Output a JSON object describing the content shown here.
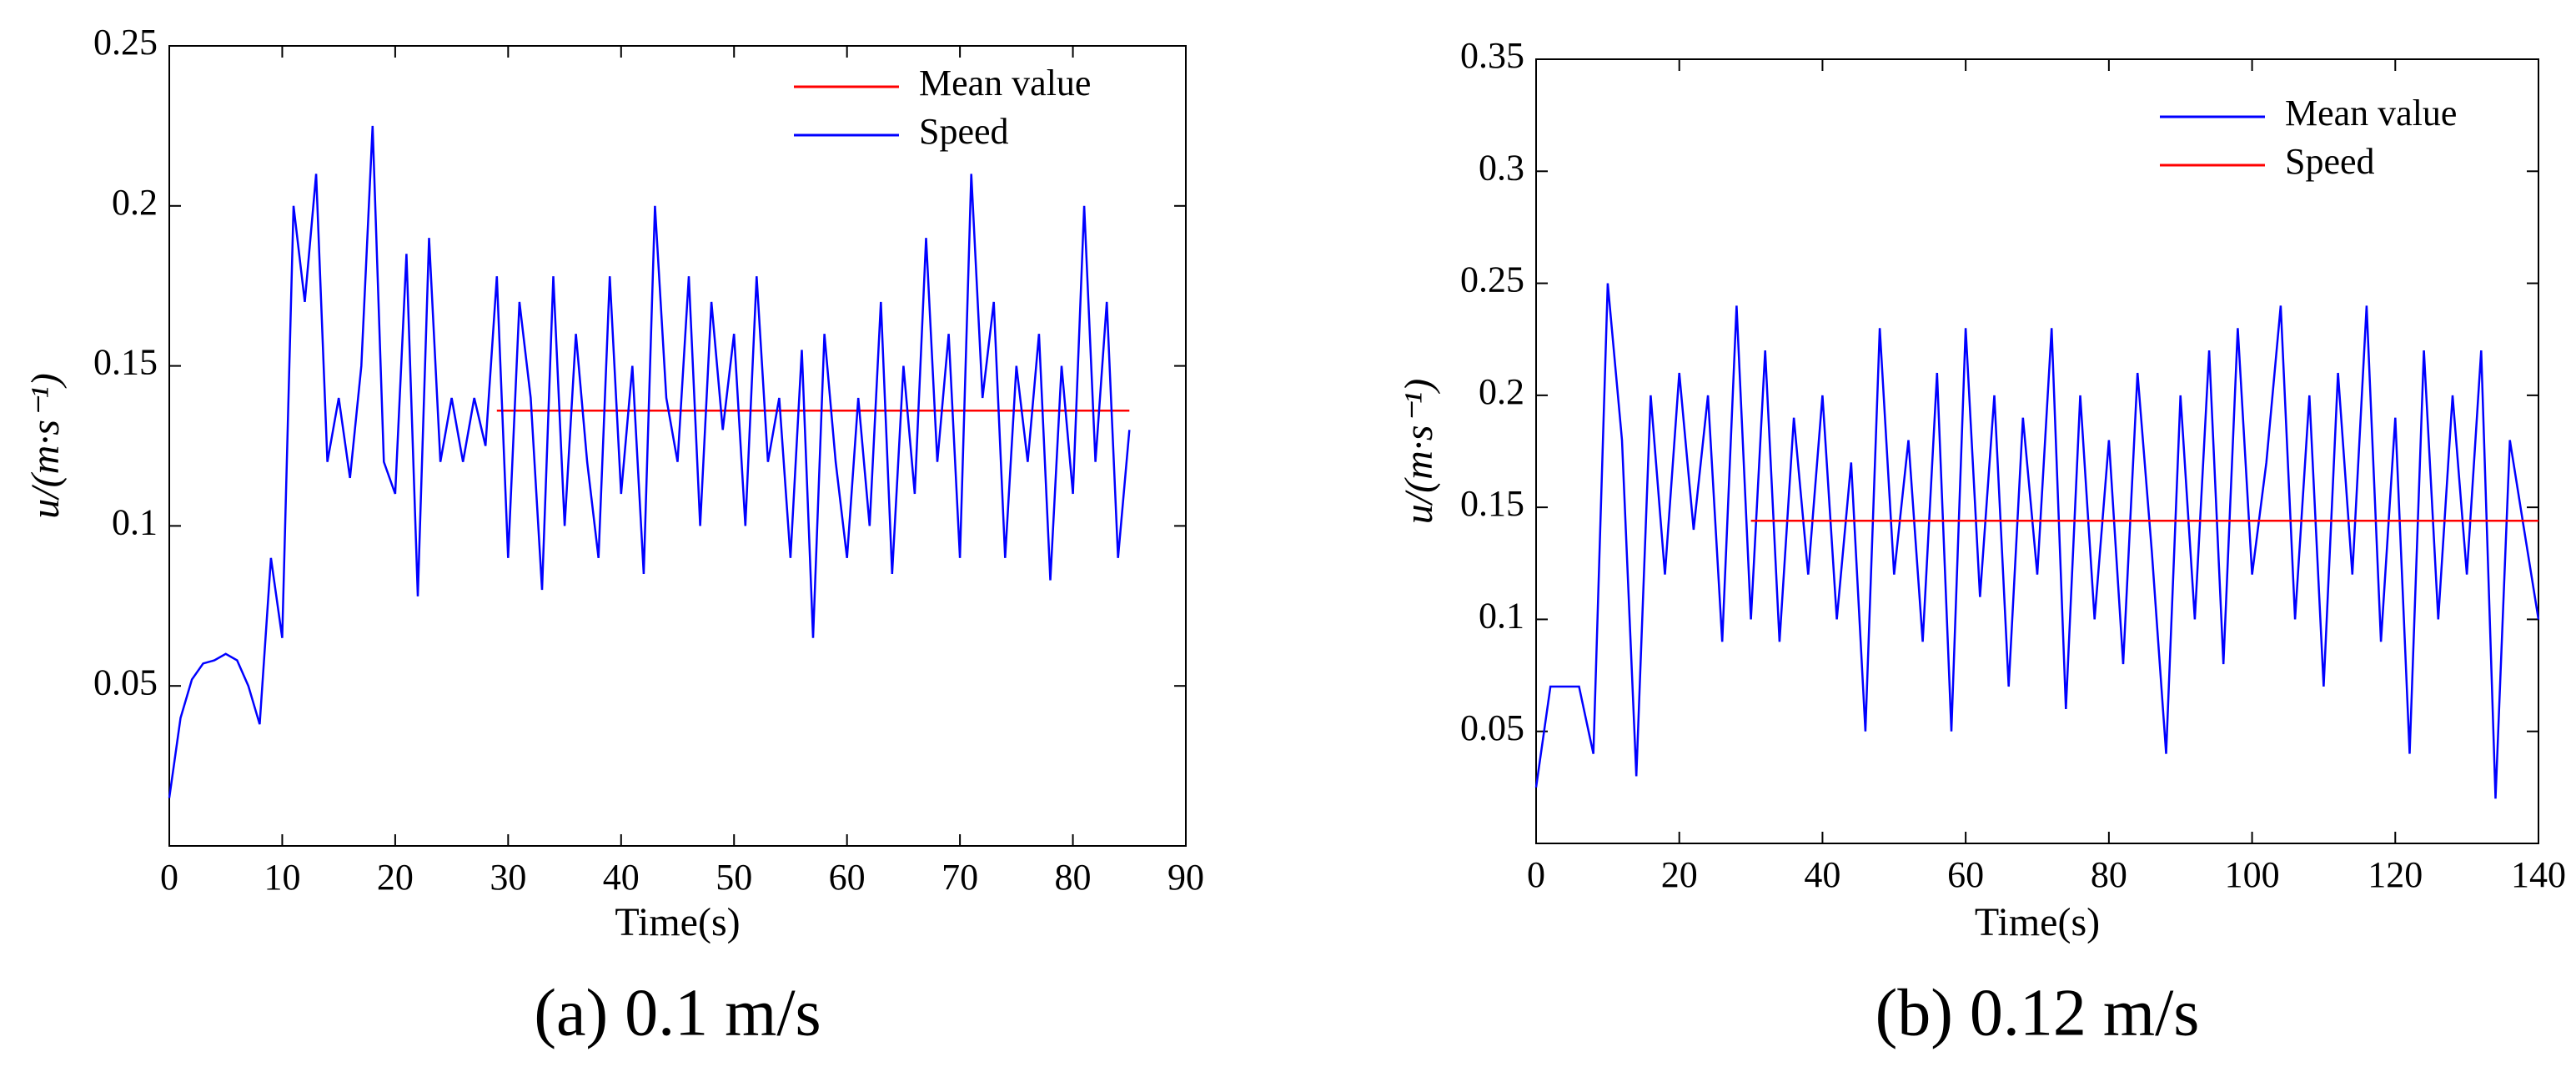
{
  "chart_data": [
    {
      "type": "line",
      "caption": "(a) 0.1 m/s",
      "x_label": "Time(s)",
      "y_label": "u/(m·s⁻¹)",
      "xlim": [
        0,
        90
      ],
      "xticks": [
        0,
        10,
        20,
        30,
        40,
        50,
        60,
        70,
        80,
        90
      ],
      "ylim": [
        0,
        0.25
      ],
      "yticks": [
        0.05,
        0.1,
        0.15,
        0.2,
        0.25
      ],
      "legend": "upper right",
      "series": [
        {
          "name": "Mean value",
          "color": "#ff0000",
          "x": [
            29,
            85
          ],
          "values": [
            0.136,
            0.136
          ]
        },
        {
          "name": "Speed",
          "color": "#0000ff",
          "x": [
            0,
            1,
            2,
            3,
            4,
            5,
            6,
            7,
            8,
            9,
            10,
            11,
            12,
            13,
            14,
            15,
            16,
            17,
            18,
            19,
            20,
            21,
            22,
            23,
            24,
            25,
            26,
            27,
            28,
            29,
            30,
            31,
            32,
            33,
            34,
            35,
            36,
            37,
            38,
            39,
            40,
            41,
            42,
            43,
            44,
            45,
            46,
            47,
            48,
            49,
            50,
            51,
            52,
            53,
            54,
            55,
            56,
            57,
            58,
            59,
            60,
            61,
            62,
            63,
            64,
            65,
            66,
            67,
            68,
            69,
            70,
            71,
            72,
            73,
            74,
            75,
            76,
            77,
            78,
            79,
            80,
            81,
            82,
            83,
            84,
            85
          ],
          "values": [
            0.015,
            0.04,
            0.052,
            0.057,
            0.058,
            0.06,
            0.058,
            0.05,
            0.038,
            0.09,
            0.065,
            0.2,
            0.17,
            0.21,
            0.12,
            0.14,
            0.115,
            0.15,
            0.225,
            0.12,
            0.11,
            0.185,
            0.078,
            0.19,
            0.12,
            0.14,
            0.12,
            0.14,
            0.125,
            0.178,
            0.09,
            0.17,
            0.14,
            0.08,
            0.178,
            0.1,
            0.16,
            0.12,
            0.09,
            0.178,
            0.11,
            0.15,
            0.085,
            0.2,
            0.14,
            0.12,
            0.178,
            0.1,
            0.17,
            0.13,
            0.16,
            0.1,
            0.178,
            0.12,
            0.14,
            0.09,
            0.155,
            0.065,
            0.16,
            0.12,
            0.09,
            0.14,
            0.1,
            0.17,
            0.085,
            0.15,
            0.11,
            0.19,
            0.12,
            0.16,
            0.09,
            0.21,
            0.14,
            0.17,
            0.09,
            0.15,
            0.12,
            0.16,
            0.083,
            0.15,
            0.11,
            0.2,
            0.12,
            0.17,
            0.09,
            0.13
          ]
        }
      ]
    },
    {
      "type": "line",
      "caption": "(b) 0.12 m/s",
      "x_label": "Time(s)",
      "y_label": "u/(m·s⁻¹)",
      "xlim": [
        0,
        140
      ],
      "xticks": [
        0,
        20,
        40,
        60,
        80,
        100,
        120,
        140
      ],
      "ylim": [
        0,
        0.35
      ],
      "yticks": [
        0.05,
        0.1,
        0.15,
        0.2,
        0.25,
        0.3,
        0.35
      ],
      "legend": "upper right",
      "series": [
        {
          "name": "Mean value",
          "color": "#0000ff",
          "x": [
            0,
            2,
            4,
            6,
            8,
            10,
            12,
            14,
            16,
            18,
            20,
            22,
            24,
            26,
            28,
            30,
            32,
            34,
            36,
            38,
            40,
            42,
            44,
            46,
            48,
            50,
            52,
            54,
            56,
            58,
            60,
            62,
            64,
            66,
            68,
            70,
            72,
            74,
            76,
            78,
            80,
            82,
            84,
            86,
            88,
            90,
            92,
            94,
            96,
            98,
            100,
            102,
            104,
            106,
            108,
            110,
            112,
            114,
            116,
            118,
            120,
            122,
            124,
            126,
            128,
            130,
            132,
            134,
            136,
            138,
            140
          ],
          "values": [
            0.025,
            0.07,
            0.07,
            0.07,
            0.04,
            0.25,
            0.18,
            0.03,
            0.2,
            0.12,
            0.21,
            0.14,
            0.2,
            0.09,
            0.24,
            0.1,
            0.22,
            0.09,
            0.19,
            0.12,
            0.2,
            0.1,
            0.17,
            0.05,
            0.23,
            0.12,
            0.18,
            0.09,
            0.21,
            0.05,
            0.23,
            0.11,
            0.2,
            0.07,
            0.19,
            0.12,
            0.23,
            0.06,
            0.2,
            0.1,
            0.18,
            0.08,
            0.21,
            0.13,
            0.04,
            0.2,
            0.1,
            0.22,
            0.08,
            0.23,
            0.12,
            0.17,
            0.24,
            0.1,
            0.2,
            0.07,
            0.21,
            0.12,
            0.24,
            0.09,
            0.19,
            0.04,
            0.22,
            0.1,
            0.2,
            0.12,
            0.22,
            0.02,
            0.18,
            0.14,
            0.1
          ]
        },
        {
          "name": "Speed",
          "color": "#ff0000",
          "x": [
            30,
            140
          ],
          "values": [
            0.144,
            0.144
          ]
        }
      ]
    }
  ]
}
